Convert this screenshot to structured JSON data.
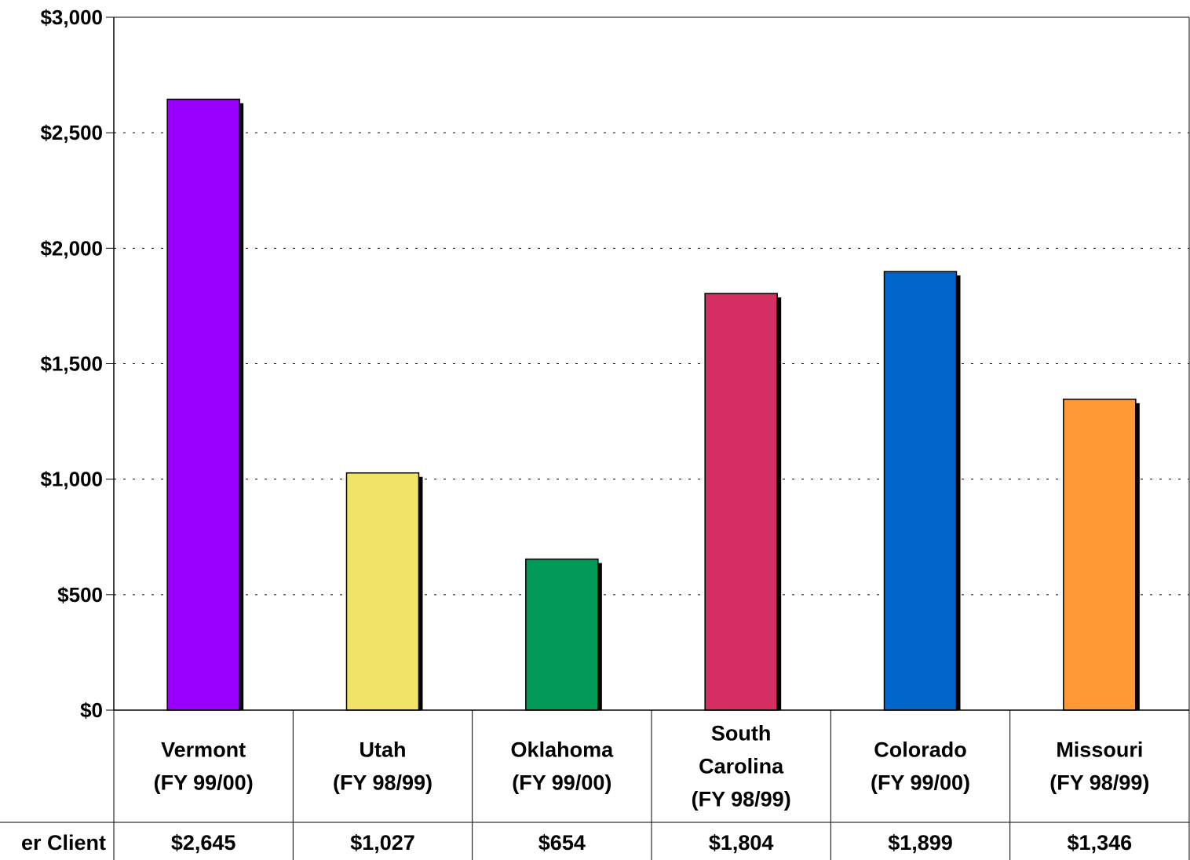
{
  "chart_data": {
    "type": "bar",
    "title": "",
    "xlabel": "",
    "ylabel": "",
    "ylim": [
      0,
      3000
    ],
    "yticks": [
      "$0",
      "$500",
      "$1,000",
      "$1,500",
      "$2,000",
      "$2,500",
      "$3,000"
    ],
    "ytick_values": [
      0,
      500,
      1000,
      1500,
      2000,
      2500,
      3000
    ],
    "grid": true,
    "categories": [
      [
        "Vermont",
        "(FY 99/00)"
      ],
      [
        "Utah",
        "(FY 98/99)"
      ],
      [
        "Oklahoma",
        "(FY 99/00)"
      ],
      [
        "South",
        "Carolina",
        "(FY 98/99)"
      ],
      [
        "Colorado",
        "(FY 99/00)"
      ],
      [
        "Missouri",
        "(FY 98/99)"
      ]
    ],
    "values": [
      2645,
      1027,
      654,
      1804,
      1899,
      1346
    ],
    "colors": [
      "#9900ff",
      "#f0e468",
      "#009955",
      "#d42e63",
      "#0066cc",
      "#ff9933"
    ],
    "table": {
      "row_label": "er Client",
      "cells": [
        "$2,645",
        "$1,027",
        "$654",
        "$1,804",
        "$1,899",
        "$1,346"
      ]
    }
  }
}
